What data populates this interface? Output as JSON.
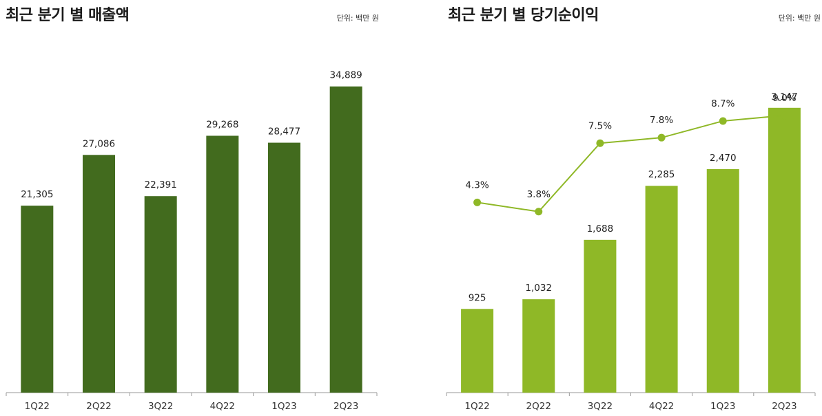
{
  "chart_data": [
    {
      "type": "bar",
      "title": "최근 분기 별 매출액",
      "unit_note": "단위: 백만 원",
      "categories": [
        "1Q22",
        "2Q22",
        "3Q22",
        "4Q22",
        "1Q23",
        "2Q23"
      ],
      "values": [
        21305,
        27086,
        22391,
        29268,
        28477,
        34889
      ],
      "value_labels": [
        "21,305",
        "27,086",
        "22,391",
        "29,268",
        "28,477",
        "34,889"
      ],
      "color": "#426b1e",
      "ylim": [
        0,
        38000
      ],
      "grid": false,
      "legend": "none"
    },
    {
      "type": "bar+line",
      "title": "최근 분기 별 당기순이익",
      "unit_note": "단위: 백만 원",
      "categories": [
        "1Q22",
        "2Q22",
        "3Q22",
        "4Q22",
        "1Q23",
        "2Q23"
      ],
      "values": [
        925,
        1032,
        1688,
        2285,
        2470,
        3147
      ],
      "value_labels": [
        "925",
        "1,032",
        "1,688",
        "2,285",
        "2,470",
        "3,147"
      ],
      "line_values": [
        4.3,
        3.8,
        7.5,
        7.8,
        8.7,
        9.0
      ],
      "line_labels": [
        "4.3%",
        "3.8%",
        "7.5%",
        "7.8%",
        "8.7%",
        "9.0%"
      ],
      "color": "#8fb827",
      "line_color": "#8fb827",
      "ylim": [
        0,
        3700
      ],
      "line_ylim": [
        0,
        10
      ],
      "grid": false,
      "legend": "none"
    }
  ]
}
